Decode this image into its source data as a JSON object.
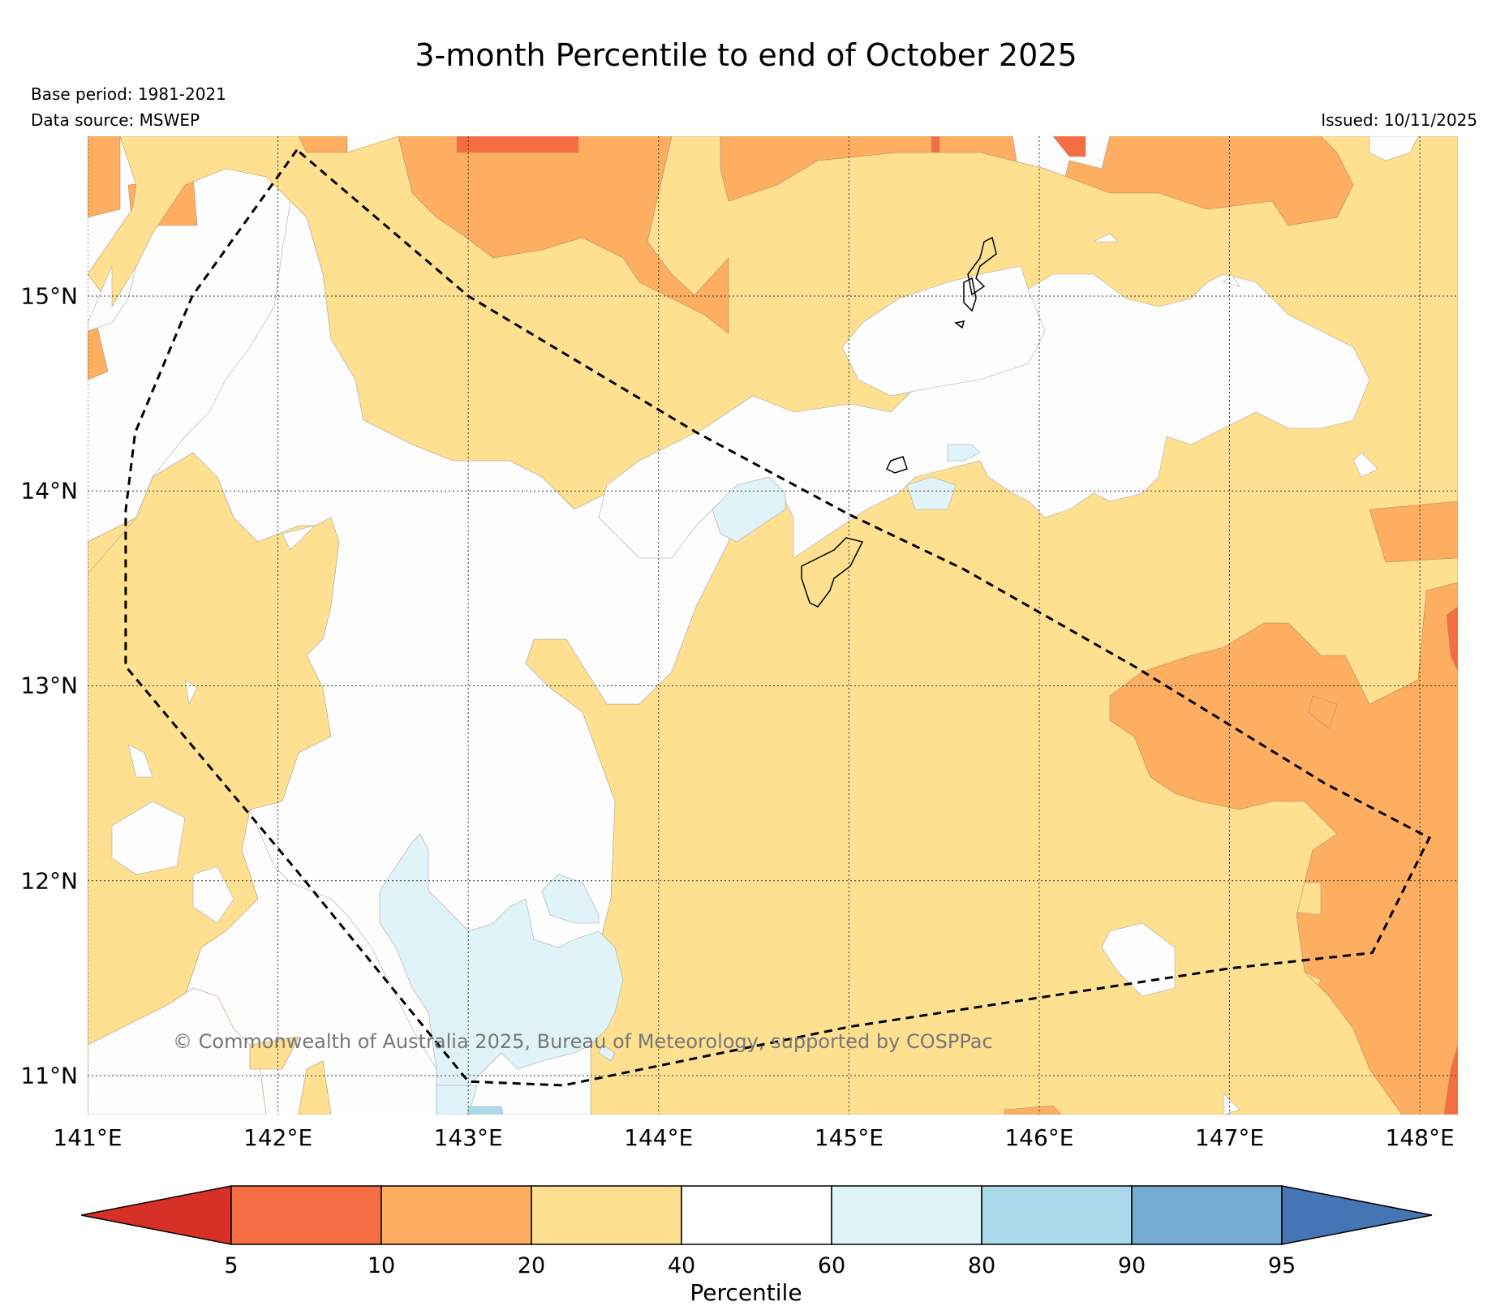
{
  "title": "3-month Percentile to end of October 2025",
  "base_period": "Base period: 1981-2021",
  "data_source": "Data source: MSWEP",
  "issued": "Issued: 10/11/2025",
  "copyright": "© Commonwealth of Australia 2025, Bureau of Meteorology, supported by COSPPac",
  "map": {
    "lon_range": [
      141.0,
      148.2
    ],
    "lat_range": [
      10.8,
      15.82
    ],
    "lon_ticks": [
      {
        "value": 141,
        "label": "141°E"
      },
      {
        "value": 142,
        "label": "142°E"
      },
      {
        "value": 143,
        "label": "143°E"
      },
      {
        "value": 144,
        "label": "144°E"
      },
      {
        "value": 145,
        "label": "145°E"
      },
      {
        "value": 146,
        "label": "146°E"
      },
      {
        "value": 147,
        "label": "147°E"
      },
      {
        "value": 148,
        "label": "148°E"
      }
    ],
    "lat_ticks": [
      {
        "value": 15,
        "label": "15°N"
      },
      {
        "value": 14,
        "label": "14°N"
      },
      {
        "value": 13,
        "label": "13°N"
      },
      {
        "value": 12,
        "label": "12°N"
      },
      {
        "value": 11,
        "label": "11°N"
      }
    ],
    "eez_boundary": [
      [
        142.1,
        15.75
      ],
      [
        141.55,
        15.0
      ],
      [
        141.25,
        14.3
      ],
      [
        141.2,
        13.9
      ],
      [
        141.2,
        13.1
      ],
      [
        142.1,
        12.05
      ],
      [
        143.0,
        10.97
      ],
      [
        143.5,
        10.95
      ],
      [
        144.0,
        11.05
      ],
      [
        145.0,
        11.25
      ],
      [
        146.0,
        11.4
      ],
      [
        147.0,
        11.55
      ],
      [
        147.75,
        11.63
      ],
      [
        148.05,
        12.22
      ],
      [
        147.5,
        12.5
      ],
      [
        146.5,
        13.1
      ],
      [
        145.6,
        13.6
      ],
      [
        145.0,
        13.88
      ],
      [
        144.2,
        14.3
      ],
      [
        143.0,
        15.0
      ],
      [
        142.1,
        15.75
      ]
    ]
  },
  "legend": {
    "title": "Percentile",
    "boundaries": [
      "5",
      "10",
      "20",
      "40",
      "60",
      "80",
      "90",
      "95"
    ],
    "colors": {
      "lt5": "#d73027",
      "b5_10": "#f46d43",
      "b10_20": "#fdae61",
      "b20_40": "#fee090",
      "b40_60": "#ffffff",
      "b60_80": "#e0f3f8",
      "b80_90": "#abd9e9",
      "b90_95": "#74add1",
      "gt95": "#4575b4"
    }
  }
}
